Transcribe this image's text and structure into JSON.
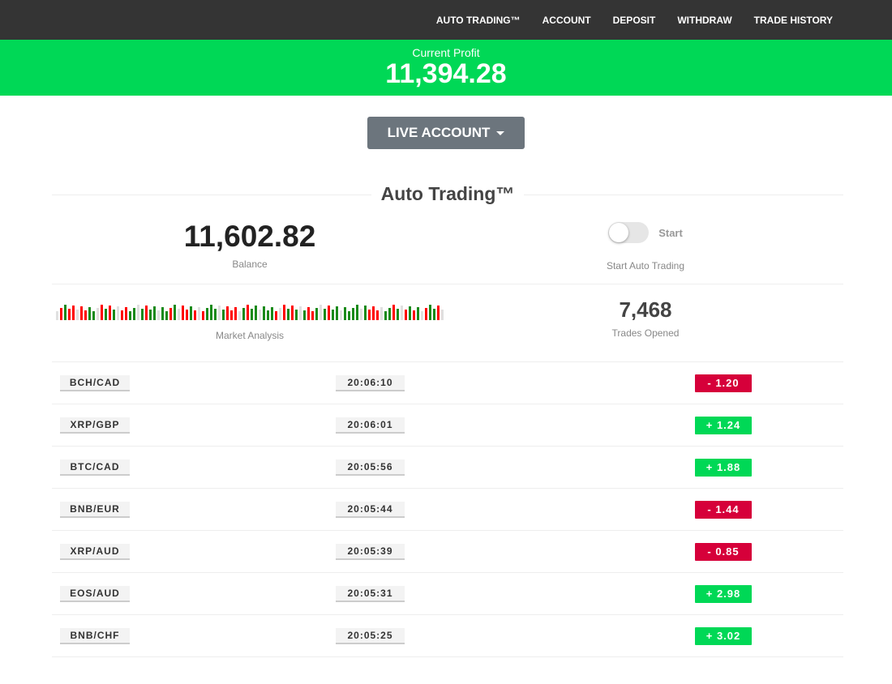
{
  "nav": {
    "items": [
      "AUTO TRADING™",
      "ACCOUNT",
      "DEPOSIT",
      "WITHDRAW",
      "TRADE HISTORY"
    ]
  },
  "profit": {
    "label": "Current Profit",
    "value": "11,394.28"
  },
  "account_button": {
    "label": "LIVE ACCOUNT"
  },
  "section_title": "Auto Trading™",
  "balance": {
    "value": "11,602.82",
    "label": "Balance"
  },
  "auto": {
    "toggle_label": "Start",
    "label": "Start Auto Trading",
    "enabled": false
  },
  "market": {
    "label": "Market Analysis"
  },
  "trades_opened": {
    "value": "7,468",
    "label": "Trades Opened"
  },
  "colors": {
    "positive": "#00d856",
    "negative": "#d6003a",
    "nav": "#343434"
  },
  "trades": [
    {
      "pair": "BCH/CAD",
      "time": "20:06:10",
      "pl": "- 1.20",
      "dir": "neg"
    },
    {
      "pair": "XRP/GBP",
      "time": "20:06:01",
      "pl": "+ 1.24",
      "dir": "pos"
    },
    {
      "pair": "BTC/CAD",
      "time": "20:05:56",
      "pl": "+ 1.88",
      "dir": "pos"
    },
    {
      "pair": "BNB/EUR",
      "time": "20:05:44",
      "pl": "- 1.44",
      "dir": "neg"
    },
    {
      "pair": "XRP/AUD",
      "time": "20:05:39",
      "pl": "- 0.85",
      "dir": "neg"
    },
    {
      "pair": "EOS/AUD",
      "time": "20:05:31",
      "pl": "+ 2.98",
      "dir": "pos"
    },
    {
      "pair": "BNB/CHF",
      "time": "20:05:25",
      "pl": "+ 3.02",
      "dir": "pos"
    }
  ]
}
